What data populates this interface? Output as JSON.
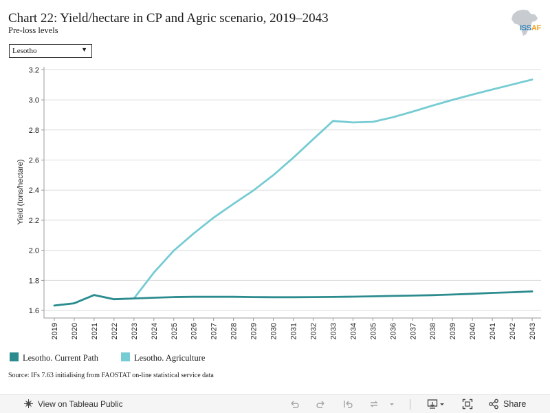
{
  "title": "Chart 22: Yield/hectare in CP and Agric scenario, 2019–2043",
  "subtitle": "Pre-loss levels",
  "logo": {
    "text_a": "ISS",
    "text_b": "AF"
  },
  "filter": {
    "selected": "Lesotho"
  },
  "source": "Source: IFs 7.63 initialising from FAOSTAT on-line statistical service data",
  "toolbar": {
    "view_label": "View on Tableau Public",
    "share_label": "Share"
  },
  "colors": {
    "current_path": "#2c8b8e",
    "agriculture": "#76ccd3",
    "grid": "#dcdcdc"
  },
  "chart_data": {
    "type": "line",
    "ylabel": "Yield (tons/hectare)",
    "xlabel": "",
    "ylim": [
      1.55,
      3.22
    ],
    "yticks": [
      1.6,
      1.8,
      2.0,
      2.2,
      2.4,
      2.6,
      2.8,
      3.0,
      3.2
    ],
    "yticklabels": [
      "1.6",
      "1.8",
      "2.0",
      "2.2",
      "2.4",
      "2.6",
      "2.8",
      "3.0",
      "3.2"
    ],
    "grid": true,
    "legend": "bottom",
    "x": [
      "2019",
      "2020",
      "2021",
      "2022",
      "2023",
      "2024",
      "2025",
      "2026",
      "2027",
      "2028",
      "2029",
      "2030",
      "2031",
      "2032",
      "2033",
      "2034",
      "2035",
      "2036",
      "2037",
      "2038",
      "2039",
      "2040",
      "2041",
      "2042",
      "2043"
    ],
    "series": [
      {
        "name": "Lesotho. Current Path",
        "values": [
          1.633,
          1.648,
          1.703,
          1.675,
          1.68,
          1.685,
          1.689,
          1.691,
          1.691,
          1.691,
          1.689,
          1.688,
          1.688,
          1.689,
          1.69,
          1.692,
          1.694,
          1.697,
          1.699,
          1.702,
          1.706,
          1.711,
          1.717,
          1.721,
          1.727
        ]
      },
      {
        "name": "Lesotho. Agriculture",
        "values": [
          1.633,
          1.648,
          1.703,
          1.675,
          1.68,
          1.852,
          1.998,
          2.112,
          2.217,
          2.309,
          2.398,
          2.5,
          2.615,
          2.738,
          2.86,
          2.85,
          2.854,
          2.884,
          2.922,
          2.962,
          3.0,
          3.035,
          3.069,
          3.102,
          3.135
        ]
      }
    ]
  }
}
